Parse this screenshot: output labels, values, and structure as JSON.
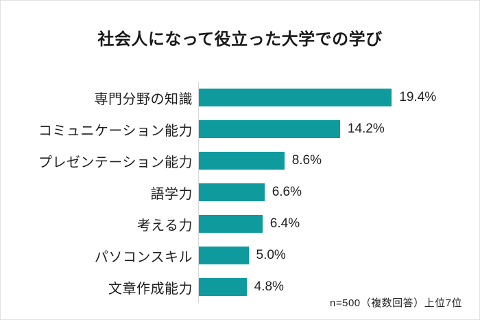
{
  "colors": {
    "bar": "#0F9B9E",
    "axis_line": "#D9D9D9",
    "title_text": "#1A1A1A",
    "background": "#FFFFFF"
  },
  "chart_data": {
    "type": "bar",
    "orientation": "horizontal",
    "title": "社会人になって役立った大学での学び",
    "categories": [
      "専門分野の知識",
      "コミュニケーション能力",
      "プレゼンテーション能力",
      "語学力",
      "考える力",
      "パソコンスキル",
      "文章作成能力"
    ],
    "values": [
      19.4,
      14.2,
      8.6,
      6.6,
      6.4,
      5.0,
      4.8
    ],
    "value_labels": [
      "19.4%",
      "14.2%",
      "8.6%",
      "6.6%",
      "6.4%",
      "5.0%",
      "4.8%"
    ],
    "annotation": "n=500（複数回答）上位7位",
    "xlim": [
      0,
      20
    ],
    "grid": false,
    "legend": false,
    "xlabel": "",
    "ylabel": ""
  }
}
